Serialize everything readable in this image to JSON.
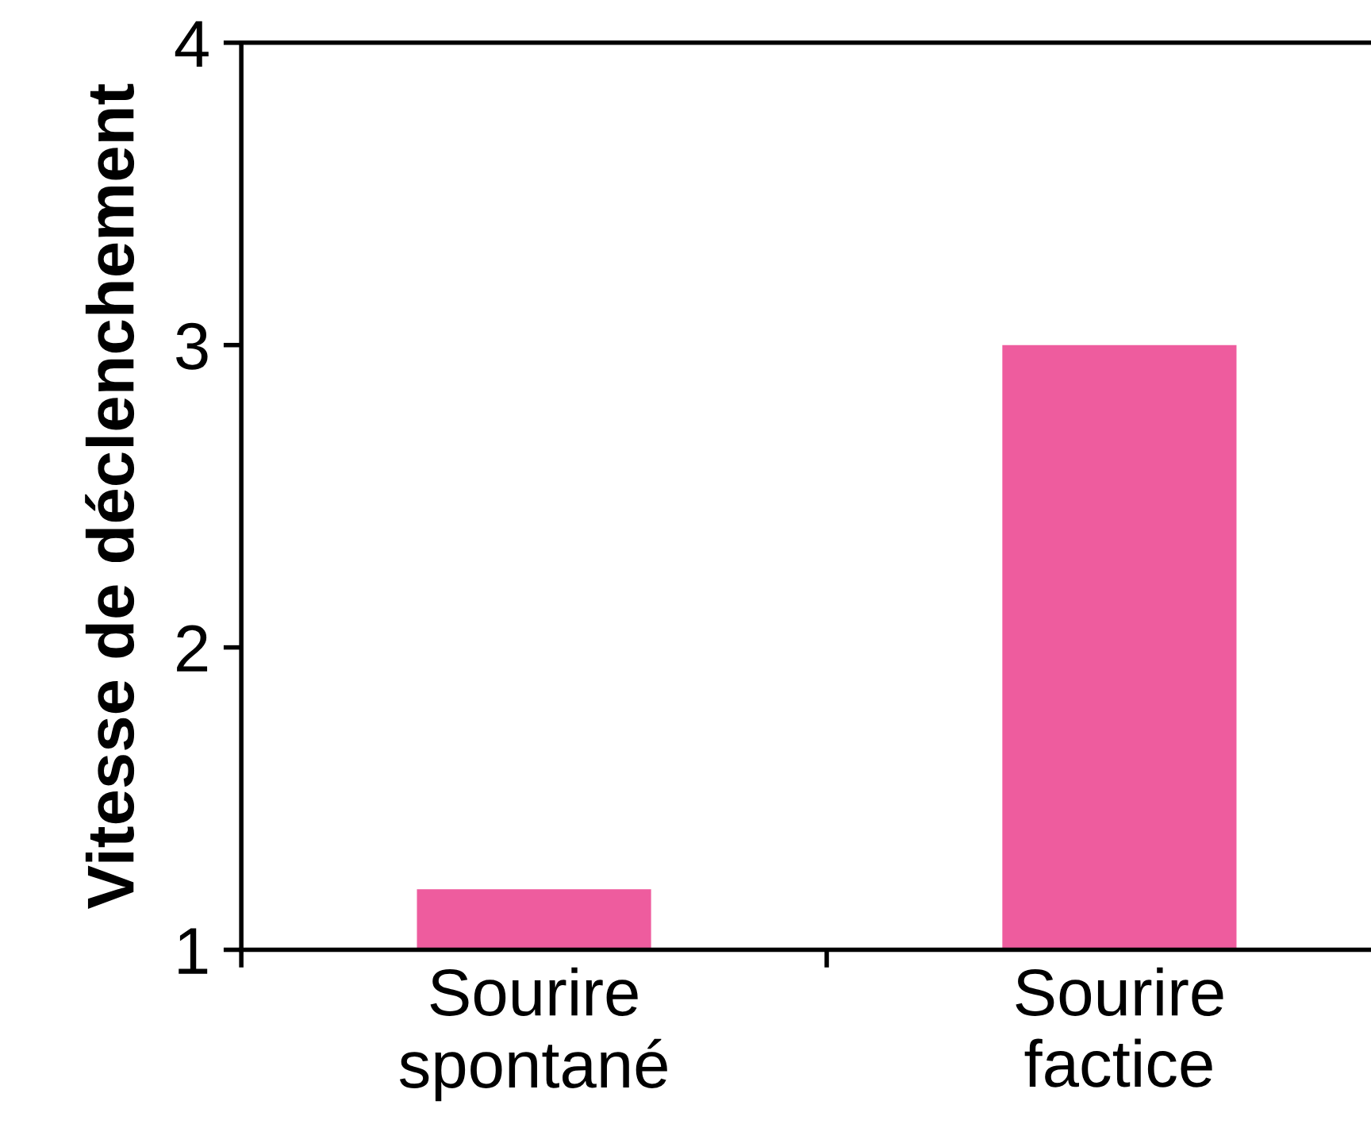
{
  "chart_data": {
    "type": "bar",
    "ylabel": "Vitesse de déclenchement",
    "categories": [
      "Sourire\nspontané",
      "Sourire\nfactice"
    ],
    "values": [
      1.2,
      3.0
    ],
    "color": "#ee5c9e",
    "ylim": [
      1,
      4
    ],
    "yticks": [
      1,
      2,
      3,
      4
    ],
    "grid": false,
    "legend": false
  }
}
